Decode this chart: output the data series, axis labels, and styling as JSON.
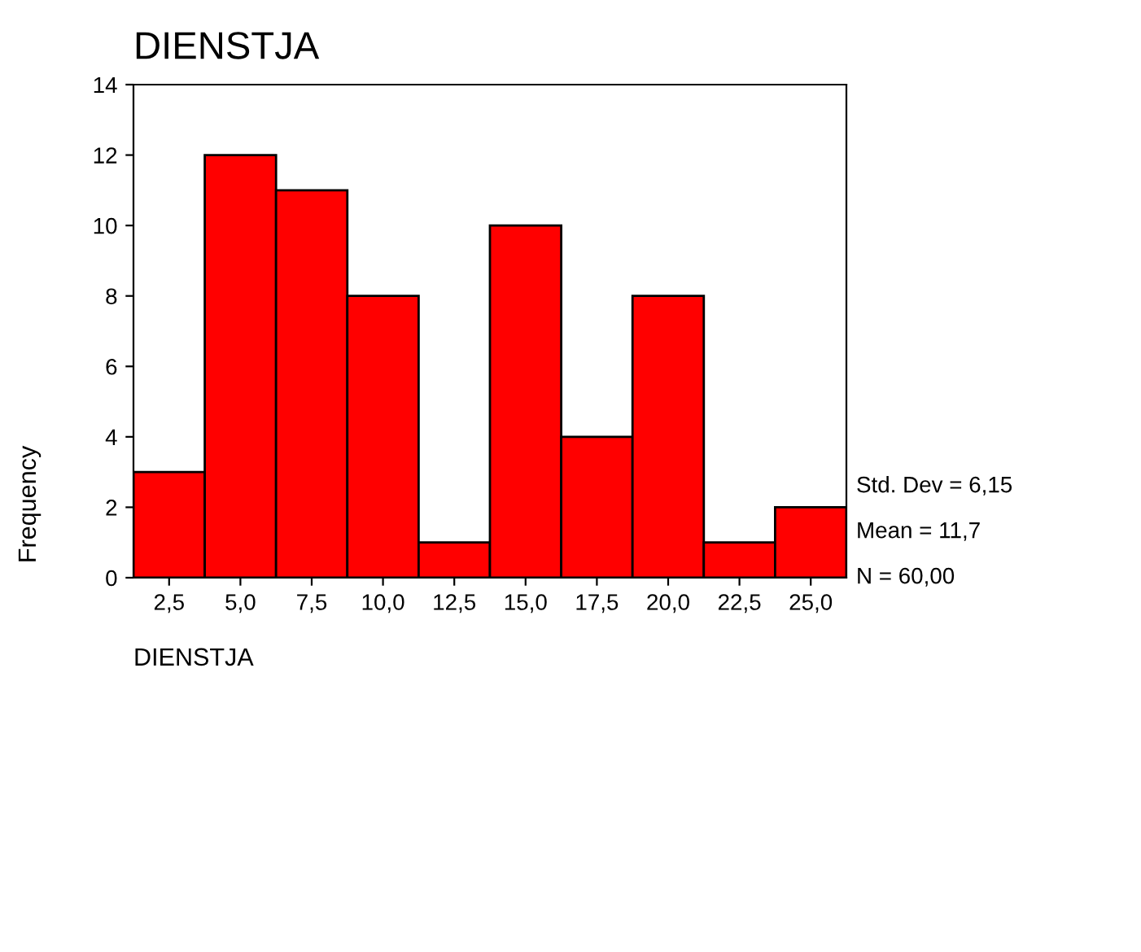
{
  "chart_data": {
    "type": "histogram",
    "title": "DIENSTJA",
    "xlabel": "DIENSTJA",
    "ylabel": "Frequency",
    "bins": [
      1.25,
      3.75,
      6.25,
      8.75,
      11.25,
      13.75,
      16.25,
      18.75,
      21.25,
      23.75,
      26.25
    ],
    "values": [
      3,
      12,
      11,
      8,
      1,
      10,
      4,
      8,
      1,
      2
    ],
    "color": "#ff0000",
    "xlim": [
      1.25,
      26.25
    ],
    "xticks": [
      {
        "value": 2.5,
        "label": "2,5"
      },
      {
        "value": 5,
        "label": "5,0"
      },
      {
        "value": 7.5,
        "label": "7,5"
      },
      {
        "value": 10,
        "label": "10,0"
      },
      {
        "value": 12.5,
        "label": "12,5"
      },
      {
        "value": 15,
        "label": "15,0"
      },
      {
        "value": 17.5,
        "label": "17,5"
      },
      {
        "value": 20,
        "label": "20,0"
      },
      {
        "value": 22.5,
        "label": "22,5"
      },
      {
        "value": 25,
        "label": "25,0"
      }
    ],
    "ylim": [
      0,
      14
    ],
    "yticks": [
      0,
      2,
      4,
      6,
      8,
      10,
      12,
      14
    ],
    "grid": false,
    "legend": false,
    "annotations": [
      "Std. Dev = 6,15",
      "Mean = 11,7",
      "N = 60,00"
    ]
  }
}
